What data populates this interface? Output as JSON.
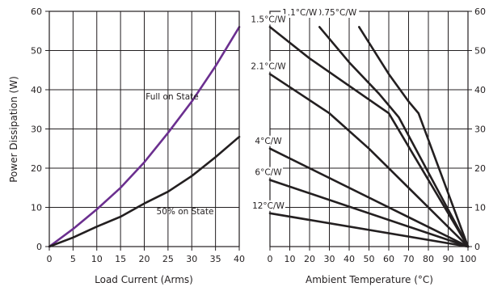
{
  "chart_data": [
    {
      "type": "line",
      "xlabel": "Load Current (Arms)",
      "ylabel": "Power Dissipation (W)",
      "xlim": [
        0,
        40
      ],
      "ylim": [
        0,
        60
      ],
      "xticks": [
        "0",
        "5",
        "10",
        "15",
        "20",
        "25",
        "30",
        "35",
        "40"
      ],
      "yticks": [
        "0",
        "10",
        "20",
        "30",
        "40",
        "50",
        "60"
      ],
      "grid": true,
      "series": [
        {
          "name": "Full on State",
          "color": "#6b2f8f",
          "x": [
            0,
            5,
            10,
            15,
            20,
            25,
            30,
            35,
            40
          ],
          "y": [
            0,
            4.5,
            9.5,
            15,
            21.5,
            29,
            37,
            46,
            56
          ]
        },
        {
          "name": "50% on State",
          "color": "#231f20",
          "x": [
            0,
            5,
            10,
            15,
            20,
            25,
            30,
            35,
            40
          ],
          "y": [
            0,
            2.3,
            5.1,
            7.6,
            11,
            14,
            18,
            22.8,
            28
          ]
        }
      ]
    },
    {
      "type": "line",
      "xlabel": "Ambient Temperature (°C)",
      "xlim": [
        0,
        100
      ],
      "ylim": [
        0,
        60
      ],
      "xticks": [
        "0",
        "10",
        "20",
        "30",
        "40",
        "50",
        "60",
        "70",
        "80",
        "90",
        "100"
      ],
      "yticks": [
        "0",
        "10",
        "20",
        "30",
        "40",
        "50",
        "60"
      ],
      "grid": true,
      "series": [
        {
          "name": "0.75°C/W",
          "color": "#231f20",
          "x": [
            45,
            60,
            70,
            75,
            100
          ],
          "y": [
            56,
            44,
            37,
            34,
            0
          ]
        },
        {
          "name": "1.1°C/W",
          "color": "#231f20",
          "x": [
            25,
            40,
            55,
            65,
            100
          ],
          "y": [
            56,
            47,
            39,
            33,
            0
          ]
        },
        {
          "name": "1.5°C/W",
          "color": "#231f20",
          "x": [
            0,
            20,
            40,
            60,
            100
          ],
          "y": [
            56,
            48,
            41,
            34,
            0
          ]
        },
        {
          "name": "2.1°C/W",
          "color": "#231f20",
          "x": [
            0,
            15,
            30,
            50,
            100
          ],
          "y": [
            44,
            39,
            34,
            25,
            0
          ]
        },
        {
          "name": "4°C/W",
          "color": "#231f20",
          "x": [
            0,
            100
          ],
          "y": [
            25,
            0
          ]
        },
        {
          "name": "6°C/W",
          "color": "#231f20",
          "x": [
            0,
            100
          ],
          "y": [
            17,
            0
          ]
        },
        {
          "name": "12°C/W",
          "color": "#231f20",
          "x": [
            0,
            100
          ],
          "y": [
            8.5,
            0
          ]
        }
      ]
    }
  ]
}
